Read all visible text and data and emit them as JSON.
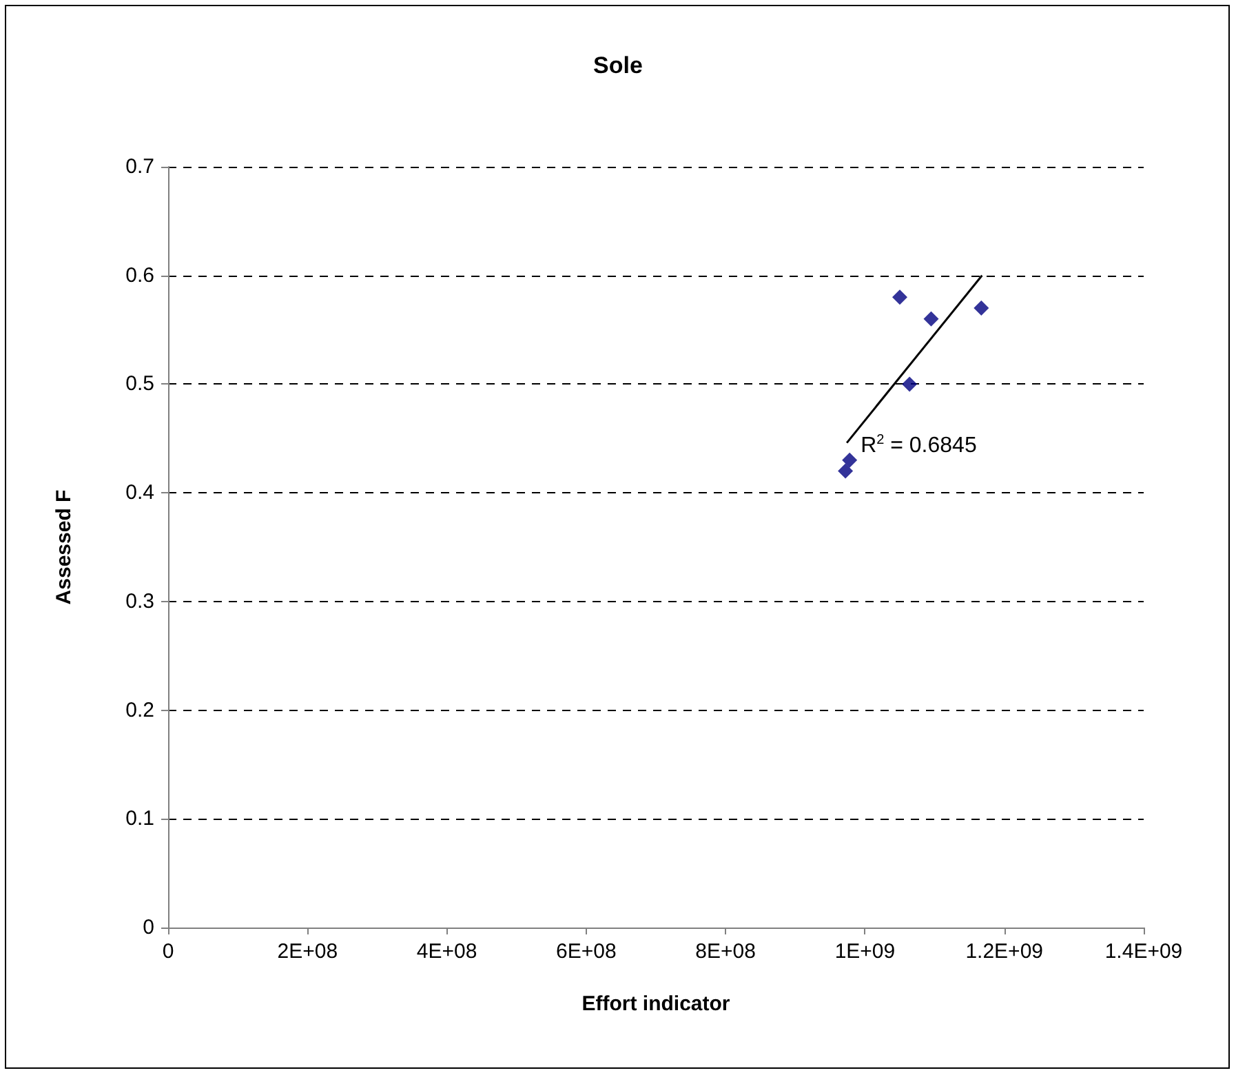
{
  "chart_data": {
    "type": "scatter",
    "title": "Sole",
    "xlabel": "Effort indicator",
    "ylabel": "Assessed F",
    "series": [
      {
        "color": "#000080",
        "marker": "diamond",
        "x": [
          972000000,
          978000000,
          1050000000,
          1064000000,
          1095000000,
          1167000000
        ],
        "values": [
          0.42,
          0.43,
          0.58,
          0.5,
          0.56,
          0.57
        ]
      },
      {
        "type": "line",
        "color": "#000000",
        "x": [
          974000000,
          1168000000
        ],
        "values": [
          0.446,
          0.6
        ]
      }
    ],
    "grid": "y",
    "xlim": [
      0,
      1400000000
    ],
    "xticks": [
      0,
      {
        "value": 200000000,
        "label": "2E+08"
      },
      {
        "value": 400000000,
        "label": "4E+08"
      },
      {
        "value": 600000000,
        "label": "6E+08"
      },
      {
        "value": 800000000,
        "label": "8E+08"
      },
      {
        "value": 1000000000,
        "label": "1E+09"
      },
      {
        "value": 1200000000,
        "label": "1.2E+09"
      },
      {
        "value": 1400000000,
        "label": "1.4E+09"
      }
    ],
    "ylim": [
      0,
      0.7
    ],
    "yticks": [
      0,
      0.1,
      0.2,
      0.3,
      0.4,
      0.5,
      0.6,
      0.7
    ],
    "annotations": [
      "R$^{2}$ = 0.6845"
    ]
  }
}
